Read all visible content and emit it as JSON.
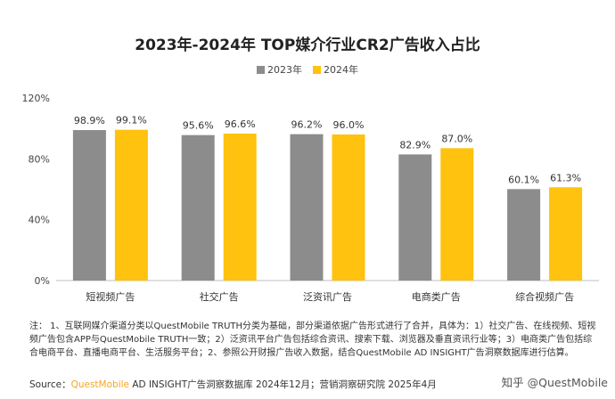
{
  "chart_data": {
    "type": "bar",
    "title": "2023年-2024年 TOP媒介行业CR2广告收入占比",
    "categories": [
      "短视频广告",
      "社交广告",
      "泛资讯广告",
      "电商类广告",
      "综合视频广告"
    ],
    "series": [
      {
        "name": "2023年",
        "color": "#8c8c8c",
        "values": [
          98.9,
          95.6,
          96.2,
          82.9,
          60.1
        ],
        "labels": [
          "98.9%",
          "95.6%",
          "96.2%",
          "82.9%",
          "60.1%"
        ]
      },
      {
        "name": "2024年",
        "color": "#ffc20e",
        "values": [
          99.1,
          96.6,
          96.0,
          87.0,
          61.3
        ],
        "labels": [
          "99.1%",
          "96.6%",
          "96.0%",
          "87.0%",
          "61.3%"
        ]
      }
    ],
    "ylim": [
      0,
      120
    ],
    "yticks": [
      0,
      40,
      80,
      120
    ],
    "ytick_labels": [
      "0%",
      "40%",
      "80%",
      "120%"
    ],
    "legend_position": "top-center",
    "grid": false
  },
  "notes": "注： 1、互联网媒介渠道分类以QuestMobile TRUTH分类为基础，部分渠道依据广告形式进行了合并，具体为：1）社交广告、在线视频、短视频广告包含APP与QuestMobile TRUTH一致；2）泛资讯平台广告包括综合资讯、搜索下载、浏览器及垂直资讯行业等；3）电商类广告包括综合电商平台、直播电商平台、生活服务平台；2、参照公开财报广告收入数据，结合QuestMobile AD INSIGHT广告洞察数据库进行估算。",
  "source": {
    "label": "Source：",
    "brand": "QuestMobile",
    "rest": " AD INSIGHT广告洞察数据库 2024年12月；营销洞察研究院 2025年4月"
  },
  "watermark": "知乎 @QuestMobile"
}
